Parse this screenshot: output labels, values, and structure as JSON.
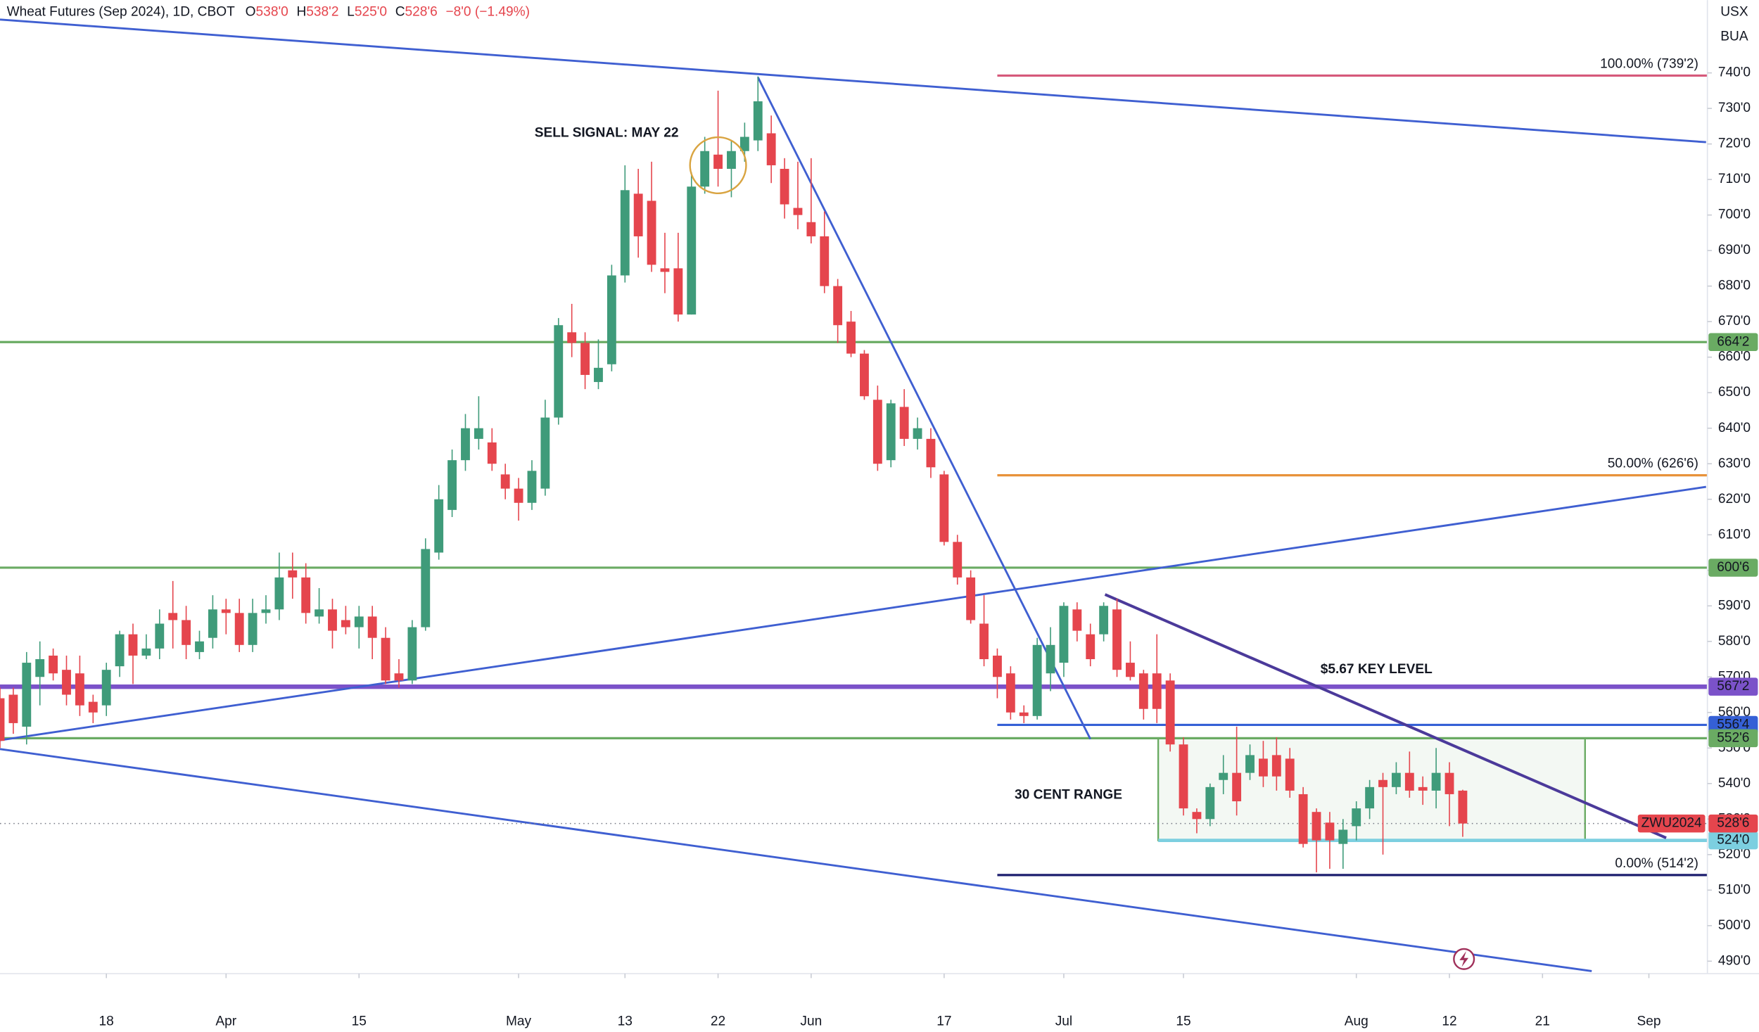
{
  "chart_data": {
    "type": "candlestick",
    "header": {
      "title": "Wheat Futures (Sep 2024), 1D, CBOT",
      "ohlc": [
        {
          "key": "O",
          "value": "538'0"
        },
        {
          "key": "H",
          "value": "538'2"
        },
        {
          "key": "L",
          "value": "525'0"
        },
        {
          "key": "C",
          "value": "528'6"
        }
      ],
      "change": "−8'0 (−1.49%)"
    },
    "currency": "USX",
    "unit": "BUA",
    "up_color": "#3f9b7a",
    "down_color": "#e5454d",
    "open": [
      564,
      565,
      556,
      570,
      576,
      572,
      571,
      563,
      562,
      573,
      582,
      576,
      578,
      588,
      586,
      577,
      581,
      589,
      588,
      579,
      588,
      589,
      600,
      598,
      587,
      589,
      586,
      584,
      587,
      581,
      571,
      569,
      584,
      605,
      617,
      631,
      637,
      636,
      627,
      623,
      619,
      623,
      643,
      667,
      664,
      653,
      658,
      683,
      706,
      704,
      685,
      685,
      672,
      708,
      717,
      713,
      718,
      721,
      723,
      713,
      702,
      698,
      694,
      680,
      670,
      661,
      648,
      631,
      646,
      637,
      637,
      627,
      608,
      598,
      585,
      576,
      571,
      560,
      559,
      571,
      574,
      589,
      582,
      582,
      589,
      574,
      571,
      571,
      569,
      551,
      532,
      530,
      541,
      543,
      543,
      547,
      548,
      547,
      537,
      532,
      529,
      523,
      528,
      533,
      541,
      539,
      543,
      539,
      538,
      543,
      538
    ],
    "high": [
      567,
      567,
      577,
      580,
      578,
      576,
      576,
      565,
      574,
      583,
      585,
      582,
      589,
      597,
      590,
      583,
      593,
      592,
      592,
      592,
      593,
      605,
      605,
      602,
      595,
      592,
      590,
      590,
      590,
      584,
      575,
      586,
      609,
      624,
      634,
      644,
      649,
      640,
      630,
      626,
      631,
      648,
      671,
      675,
      667,
      665,
      686,
      714,
      713,
      715,
      695,
      695,
      712,
      722,
      735,
      721,
      726,
      739,
      728,
      716,
      715,
      716,
      701,
      682,
      673,
      662,
      652,
      648,
      651,
      643,
      640,
      628,
      610,
      600,
      593,
      578,
      573,
      562,
      581,
      584,
      591,
      591,
      585,
      591,
      592,
      580,
      572,
      582,
      571,
      553,
      533,
      540,
      548,
      556,
      551,
      552,
      553,
      550,
      539,
      533,
      532,
      530,
      535,
      541,
      543,
      546,
      549,
      542,
      550,
      546,
      538.25
    ],
    "low": [
      550,
      554,
      551,
      562,
      569,
      562,
      559,
      557,
      559,
      570,
      568,
      575,
      575,
      578,
      575,
      575,
      578,
      582,
      577,
      577,
      585,
      586,
      592,
      585,
      585,
      578,
      582,
      578,
      575,
      568,
      567,
      568,
      583,
      603,
      615,
      628,
      634,
      628,
      620,
      614,
      617,
      621,
      641,
      660,
      651,
      651,
      656,
      681,
      688,
      684,
      678,
      670,
      672,
      706,
      708,
      705,
      715,
      718,
      709,
      699,
      696,
      692,
      678,
      664,
      660,
      648,
      628,
      629,
      635,
      634,
      626,
      607,
      596,
      585,
      573,
      564,
      558,
      557,
      558,
      566,
      570,
      580,
      573,
      580,
      570,
      569,
      558,
      557,
      549,
      531,
      526,
      528,
      537,
      531,
      541,
      539,
      538,
      536,
      522,
      515,
      516,
      516,
      524,
      530,
      520,
      537,
      536,
      534,
      533,
      528,
      525
    ],
    "close": [
      552,
      557,
      574,
      575,
      571,
      565,
      562,
      560,
      572,
      582,
      576,
      578,
      585,
      586,
      579,
      580,
      589,
      588,
      579,
      588,
      589,
      598,
      598,
      588,
      589,
      583,
      584,
      587,
      581,
      569,
      569,
      584,
      606,
      620,
      631,
      640,
      640,
      630,
      623,
      619,
      628,
      643,
      669,
      664,
      655,
      657,
      683,
      707,
      694,
      686,
      684,
      672,
      708,
      718,
      713,
      718,
      722,
      732,
      714,
      703,
      700,
      694,
      680,
      669,
      661,
      649,
      630,
      647,
      637,
      640,
      629,
      608,
      598,
      586,
      575,
      570,
      560,
      559,
      579,
      579,
      590,
      583,
      575,
      590,
      572,
      570,
      561,
      561,
      551,
      533,
      530,
      539,
      543,
      535,
      548,
      542,
      542,
      538,
      523,
      524,
      524,
      527,
      533,
      539,
      539,
      543,
      538,
      538,
      543,
      537,
      528.75
    ],
    "xlim": [
      0,
      128.4
    ],
    "ylim": [
      486.5,
      760.5
    ],
    "xticks": [
      {
        "value": 8,
        "label": "18"
      },
      {
        "value": 17,
        "label": "Apr"
      },
      {
        "value": 27,
        "label": "15"
      },
      {
        "value": 39,
        "label": "May"
      },
      {
        "value": 47,
        "label": "13"
      },
      {
        "value": 54,
        "label": "22"
      },
      {
        "value": 61,
        "label": "Jun"
      },
      {
        "value": 71,
        "label": "17"
      },
      {
        "value": 80,
        "label": "Jul"
      },
      {
        "value": 89,
        "label": "15"
      },
      {
        "value": 102,
        "label": "Aug"
      },
      {
        "value": 109,
        "label": "12"
      },
      {
        "value": 116,
        "label": "21"
      },
      {
        "value": 124,
        "label": "Sep"
      }
    ],
    "yticks": [
      {
        "value": 490,
        "label": "490'0"
      },
      {
        "value": 500,
        "label": "500'0"
      },
      {
        "value": 510,
        "label": "510'0"
      },
      {
        "value": 520,
        "label": "520'0"
      },
      {
        "value": 530,
        "label": "530'0"
      },
      {
        "value": 540,
        "label": "540'0"
      },
      {
        "value": 550,
        "label": "550'0"
      },
      {
        "value": 560,
        "label": "560'0"
      },
      {
        "value": 570,
        "label": "570'0"
      },
      {
        "value": 580,
        "label": "580'0"
      },
      {
        "value": 590,
        "label": "590'0"
      },
      {
        "value": 600,
        "label": "600'0"
      },
      {
        "value": 610,
        "label": "610'0"
      },
      {
        "value": 620,
        "label": "620'0"
      },
      {
        "value": 630,
        "label": "630'0"
      },
      {
        "value": 640,
        "label": "640'0"
      },
      {
        "value": 650,
        "label": "650'0"
      },
      {
        "value": 660,
        "label": "660'0"
      },
      {
        "value": 670,
        "label": "670'0"
      },
      {
        "value": 680,
        "label": "680'0"
      },
      {
        "value": 690,
        "label": "690'0"
      },
      {
        "value": 700,
        "label": "700'0"
      },
      {
        "value": 710,
        "label": "710'0"
      },
      {
        "value": 720,
        "label": "720'0"
      },
      {
        "value": 730,
        "label": "730'0"
      },
      {
        "value": 740,
        "label": "740'0"
      }
    ],
    "levels": [
      {
        "value": 664.25,
        "label": "664'2",
        "color": "#6aab63",
        "width": 2
      },
      {
        "value": 600.75,
        "label": "600'6",
        "color": "#6aab63",
        "width": 2
      },
      {
        "value": 567.25,
        "label": "567'2",
        "color": "#7b52c9",
        "width": 4
      },
      {
        "value": 556.5,
        "label": "556'4",
        "color": "#3560d6",
        "width": 2,
        "from": 75
      },
      {
        "value": 552.75,
        "label": "552'6",
        "color": "#6aab63",
        "width": 2
      },
      {
        "value": 524,
        "label": "524'0",
        "color": "#7ccfe0",
        "width": 3,
        "from": 87.1
      }
    ],
    "fib": [
      {
        "value": 739.25,
        "label": "100.00% (739'2)",
        "color": "#d6587a"
      },
      {
        "value": 626.75,
        "label": "50.00% (626'6)",
        "color": "#e8923a"
      },
      {
        "value": 514.25,
        "label": "0.00% (514'2)",
        "color": "#1b1d6e"
      }
    ],
    "fib_from": 75,
    "trendlines": [
      {
        "from": [
          0,
          755
        ],
        "to": [
          128.3,
          720.5
        ],
        "color": "#3f5fd1"
      },
      {
        "from": [
          57,
          738.75
        ],
        "to": [
          82,
          552.5
        ],
        "color": "#3f5fd1"
      },
      {
        "from": [
          0,
          552.2
        ],
        "to": [
          128.3,
          623.5
        ],
        "color": "#3f5fd1"
      },
      {
        "from": [
          0,
          549.7
        ],
        "to": [
          119.7,
          487.2
        ],
        "color": "#3f5fd1"
      },
      {
        "from": [
          83.1,
          593.2
        ],
        "to": [
          125.3,
          524.7
        ],
        "color": "#4b3a9a"
      }
    ],
    "range_box": {
      "x": [
        87.1,
        119.2
      ],
      "y": [
        524,
        552.75
      ]
    },
    "circle": {
      "x": 54,
      "y": 714
    },
    "annotations": [
      {
        "text": "SELL SIGNAL: MAY 22",
        "x": 40.2,
        "y": 723
      },
      {
        "text": "$5.67 KEY LEVEL",
        "x": 99.3,
        "y": 572
      },
      {
        "text": "30 CENT RANGE",
        "x": 76.3,
        "y": 536.7
      }
    ],
    "last": {
      "value": 528.75,
      "label": "528'6",
      "symbol": "ZWU2024"
    }
  }
}
